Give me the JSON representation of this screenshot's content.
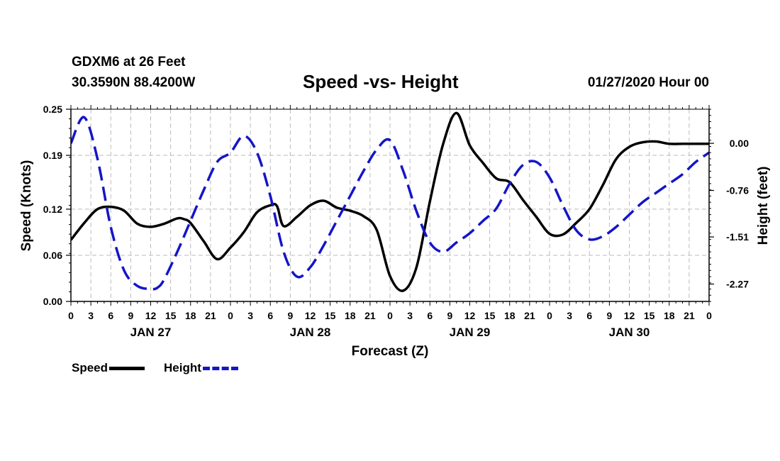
{
  "header": {
    "station": "GDXM6 at 26 Feet",
    "coords": "30.3590N 88.4200W",
    "title": "Speed -vs- Height",
    "datetime": "01/27/2020 Hour 00"
  },
  "legend": {
    "speed": "Speed",
    "height": "Height"
  },
  "colors": {
    "speed": "#000000",
    "height": "#1515c8",
    "grid": "#bbbbbb"
  },
  "chart_data": {
    "type": "line",
    "title": "Speed -vs- Height",
    "xlabel": "Forecast (Z)",
    "ylabel": "Speed (Knots)",
    "y2label": "Height (feet)",
    "xlim": [
      0,
      96
    ],
    "ylim": [
      0.0,
      0.25
    ],
    "y2lim": [
      -2.55,
      0.55
    ],
    "x_tick_labels": [
      "0",
      "3",
      "6",
      "9",
      "12",
      "15",
      "18",
      "21",
      "0",
      "3",
      "6",
      "9",
      "12",
      "15",
      "18",
      "21",
      "0",
      "3",
      "6",
      "9",
      "12",
      "15",
      "18",
      "21",
      "0",
      "3",
      "6",
      "9",
      "12",
      "15",
      "18",
      "21",
      "0"
    ],
    "y_ticks": [
      0.0,
      0.06,
      0.12,
      0.19,
      0.25
    ],
    "y_tick_labels": [
      "0.00",
      "0.06",
      "0.12",
      "0.19",
      "0.25"
    ],
    "y2_ticks": [
      0.0,
      -0.76,
      -1.51,
      -2.27
    ],
    "y2_tick_labels": [
      "0.00",
      "-0.76",
      "-1.51",
      "-2.27"
    ],
    "date_labels": [
      {
        "hour": 12,
        "label": "JAN 27"
      },
      {
        "hour": 36,
        "label": "JAN 28"
      },
      {
        "hour": 60,
        "label": "JAN 29"
      },
      {
        "hour": 84,
        "label": "JAN 30"
      }
    ],
    "series": [
      {
        "name": "Speed",
        "axis": "left",
        "style": "solid",
        "x": [
          0,
          2,
          4,
          6,
          8,
          10,
          12,
          14,
          16,
          17,
          18,
          20,
          22,
          24,
          26,
          28,
          30,
          31,
          32,
          34,
          36,
          38,
          40,
          42,
          44,
          46,
          48,
          50,
          52,
          54,
          56,
          58,
          60,
          62,
          64,
          66,
          68,
          70,
          72,
          74,
          76,
          78,
          80,
          82,
          84,
          86,
          88,
          90,
          92,
          94,
          96
        ],
        "values": [
          0.08,
          0.102,
          0.12,
          0.123,
          0.118,
          0.101,
          0.097,
          0.101,
          0.108,
          0.107,
          0.102,
          0.078,
          0.055,
          0.07,
          0.09,
          0.116,
          0.125,
          0.124,
          0.098,
          0.11,
          0.125,
          0.131,
          0.122,
          0.118,
          0.111,
          0.093,
          0.033,
          0.014,
          0.045,
          0.13,
          0.205,
          0.245,
          0.203,
          0.18,
          0.16,
          0.155,
          0.132,
          0.11,
          0.088,
          0.087,
          0.102,
          0.12,
          0.151,
          0.185,
          0.201,
          0.207,
          0.208,
          0.205,
          0.205,
          0.205,
          0.205
        ]
      },
      {
        "name": "Height",
        "axis": "right",
        "style": "dashed",
        "x": [
          0,
          2,
          4,
          6,
          8,
          10,
          12,
          13,
          14,
          16,
          18,
          20,
          22,
          24,
          26,
          28,
          30,
          32,
          34,
          36,
          38,
          40,
          42,
          44,
          46,
          48,
          50,
          52,
          54,
          56,
          58,
          60,
          62,
          64,
          66,
          68,
          70,
          72,
          74,
          76,
          78,
          80,
          82,
          84,
          86,
          88,
          90,
          92,
          94,
          96
        ],
        "values": [
          0.0,
          0.42,
          -0.25,
          -1.35,
          -2.05,
          -2.3,
          -2.35,
          -2.33,
          -2.2,
          -1.75,
          -1.25,
          -0.75,
          -0.3,
          -0.15,
          0.12,
          -0.15,
          -0.85,
          -1.75,
          -2.15,
          -2.0,
          -1.65,
          -1.25,
          -0.85,
          -0.45,
          -0.1,
          0.05,
          -0.45,
          -1.1,
          -1.6,
          -1.75,
          -1.6,
          -1.45,
          -1.25,
          -1.05,
          -0.65,
          -0.35,
          -0.3,
          -0.55,
          -1.0,
          -1.4,
          -1.55,
          -1.5,
          -1.35,
          -1.15,
          -0.95,
          -0.8,
          -0.65,
          -0.5,
          -0.3,
          -0.15
        ]
      }
    ]
  }
}
